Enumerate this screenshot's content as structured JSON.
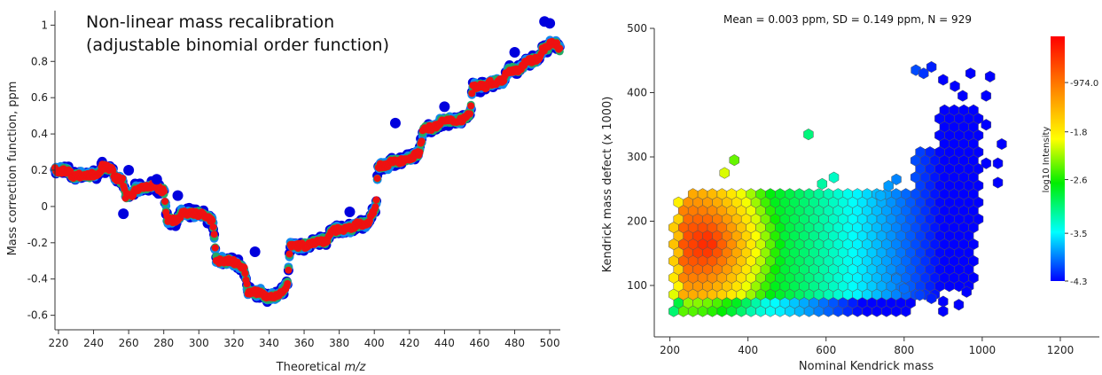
{
  "chart_data": [
    {
      "type": "scatter",
      "title_lines": [
        "Non-linear mass recalibration",
        "(adjustable binomial order function)"
      ],
      "xlabel": "Theoretical",
      "xlabel_italic": "m/z",
      "ylabel": "Mass correction function, ppm",
      "xlim": [
        218,
        506
      ],
      "ylim": [
        -0.68,
        1.08
      ],
      "xticks": [
        220,
        240,
        260,
        280,
        300,
        320,
        340,
        360,
        380,
        400,
        420,
        440,
        460,
        480,
        500
      ],
      "yticks": [
        -0.6,
        -0.4,
        -0.2,
        0,
        0.2,
        0.4,
        0.6,
        0.8,
        1
      ],
      "ytick_labels": [
        "-0.6",
        "-0.4",
        "-0.2",
        "0",
        "0.2",
        "0.4",
        "0.6",
        "0.8",
        "1"
      ],
      "point_colors": [
        "#0000dd",
        "#1188ee",
        "#22aa66",
        "#ee1111"
      ],
      "step_profile": {
        "x": [
          218,
          228,
          235,
          245,
          252,
          258,
          264,
          274,
          282,
          290,
          302,
          310,
          318,
          328,
          338,
          346,
          352,
          364,
          376,
          390,
          398,
          402,
          410,
          418,
          428,
          438,
          450,
          456,
          466,
          476,
          486,
          496,
          500,
          506
        ],
        "y": [
          0.2,
          0.17,
          0.17,
          0.22,
          0.16,
          0.06,
          0.1,
          0.12,
          -0.08,
          -0.04,
          -0.04,
          -0.3,
          -0.3,
          -0.47,
          -0.5,
          -0.48,
          -0.22,
          -0.2,
          -0.13,
          -0.1,
          -0.06,
          0.22,
          0.25,
          0.26,
          0.43,
          0.47,
          0.48,
          0.66,
          0.68,
          0.75,
          0.8,
          0.87,
          0.9,
          0.86
        ]
      },
      "outliers": [
        {
          "x": 260,
          "y": 0.2
        },
        {
          "x": 257,
          "y": -0.04
        },
        {
          "x": 276,
          "y": 0.15
        },
        {
          "x": 288,
          "y": 0.06
        },
        {
          "x": 332,
          "y": -0.25
        },
        {
          "x": 386,
          "y": -0.03
        },
        {
          "x": 412,
          "y": 0.46
        },
        {
          "x": 440,
          "y": 0.55
        },
        {
          "x": 480,
          "y": 0.85
        },
        {
          "x": 497,
          "y": 1.02
        },
        {
          "x": 500,
          "y": 1.01
        }
      ]
    },
    {
      "type": "heatmap",
      "subtype": "hexbin",
      "title": "Mean = 0.003 ppm, SD = 0.149 ppm, N = 929",
      "xlabel": "Nominal Kendrick mass",
      "ylabel": "Kendrick mass defect (x 1000)",
      "xlim": [
        160,
        1300
      ],
      "ylim": [
        20,
        500
      ],
      "xticks": [
        200,
        400,
        600,
        800,
        1000,
        1200
      ],
      "yticks": [
        100,
        200,
        300,
        400,
        500
      ],
      "colorbar": {
        "label": "log10 Intensity",
        "tick_labels": [
          "-974.0 m",
          "-1.8",
          "-2.6",
          "-3.5",
          "-4.3"
        ],
        "tick_values": [
          -0.974,
          -1.8,
          -2.6,
          -3.5,
          -4.3
        ],
        "range": [
          -0.2,
          -4.3
        ],
        "colors": [
          "#ff0000",
          "#ff8800",
          "#ffff00",
          "#00ee00",
          "#00ffff",
          "#0000ff"
        ]
      },
      "bulk_regions": [
        {
          "x_range": [
            200,
            820
          ],
          "y_range": [
            55,
            245
          ]
        },
        {
          "x_range": [
            820,
            880
          ],
          "y_range": [
            80,
            320
          ]
        },
        {
          "x_range": [
            880,
            980
          ],
          "y_range": [
            90,
            380
          ]
        },
        {
          "x_range": [
            960,
            1000
          ],
          "y_range": [
            200,
            360
          ]
        }
      ],
      "extra_hexes": [
        {
          "x": 555,
          "y": 335
        },
        {
          "x": 620,
          "y": 268
        },
        {
          "x": 590,
          "y": 258
        },
        {
          "x": 365,
          "y": 295
        },
        {
          "x": 340,
          "y": 275
        },
        {
          "x": 830,
          "y": 435
        },
        {
          "x": 850,
          "y": 430
        },
        {
          "x": 870,
          "y": 440
        },
        {
          "x": 900,
          "y": 420
        },
        {
          "x": 930,
          "y": 410
        },
        {
          "x": 970,
          "y": 430
        },
        {
          "x": 1020,
          "y": 425
        },
        {
          "x": 1010,
          "y": 395
        },
        {
          "x": 1010,
          "y": 350
        },
        {
          "x": 950,
          "y": 395
        },
        {
          "x": 1050,
          "y": 320
        },
        {
          "x": 1040,
          "y": 290
        },
        {
          "x": 1040,
          "y": 260
        },
        {
          "x": 1010,
          "y": 290
        },
        {
          "x": 780,
          "y": 265
        },
        {
          "x": 760,
          "y": 255
        },
        {
          "x": 740,
          "y": 240
        },
        {
          "x": 780,
          "y": 110
        },
        {
          "x": 800,
          "y": 95
        },
        {
          "x": 840,
          "y": 85
        },
        {
          "x": 870,
          "y": 80
        },
        {
          "x": 900,
          "y": 75
        },
        {
          "x": 940,
          "y": 70
        },
        {
          "x": 960,
          "y": 90
        },
        {
          "x": 900,
          "y": 60
        }
      ]
    }
  ]
}
